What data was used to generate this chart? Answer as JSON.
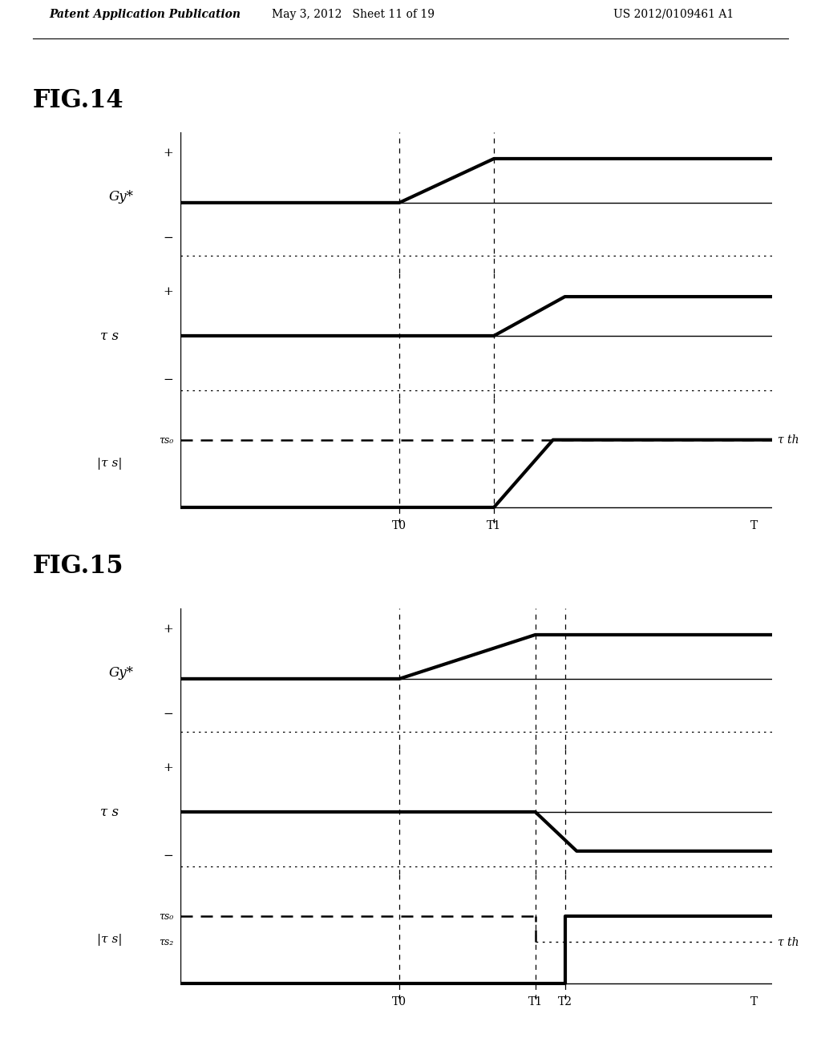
{
  "fig14_title": "FIG.14",
  "fig15_title": "FIG.15",
  "header_left": "Patent Application Publication",
  "header_mid": "May 3, 2012   Sheet 11 of 19",
  "header_right": "US 2012/0109461 A1",
  "bg_color": "#ffffff",
  "t0": 0.37,
  "t1_fig14": 0.53,
  "t1_fig15": 0.6,
  "t2_fig15": 0.65,
  "lw_thick": 3.0,
  "lw_thin": 1.0,
  "lw_dot": 0.9,
  "lw_vdash": 0.9
}
